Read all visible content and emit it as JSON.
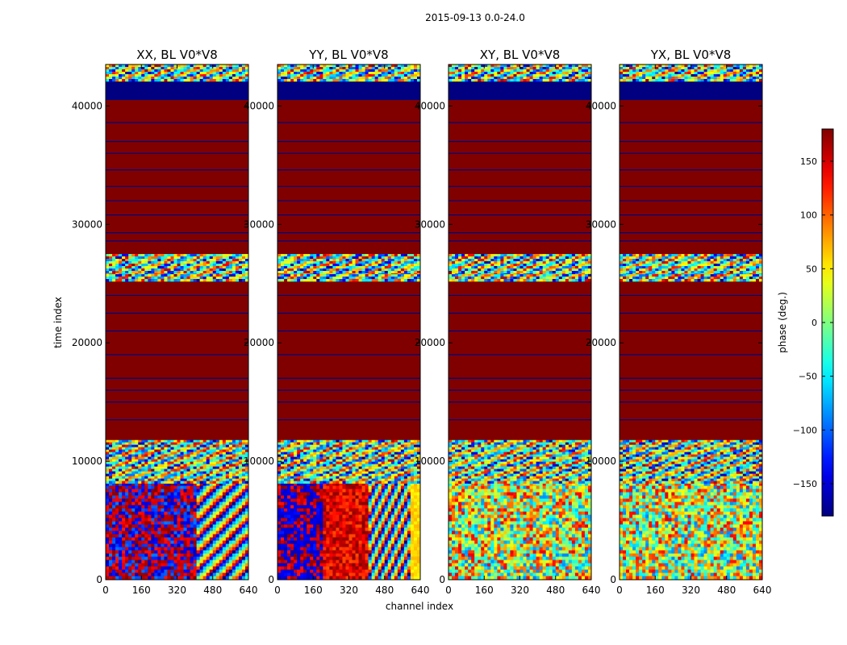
{
  "suptitle": "2015-09-13 0.0-24.0",
  "chart_data": {
    "type": "heatmap",
    "xlabel": "channel index",
    "ylabel": "time index",
    "xlim": [
      0,
      640
    ],
    "ylim": [
      0,
      43500
    ],
    "xticks": [
      0,
      160,
      320,
      480,
      640
    ],
    "yticks": [
      0,
      10000,
      20000,
      30000,
      40000
    ],
    "panels": [
      {
        "title": "XX, BL V0*V8",
        "pol": "XX"
      },
      {
        "title": "YY, BL V0*V8",
        "pol": "YY"
      },
      {
        "title": "XY, BL V0*V8",
        "pol": "XY"
      },
      {
        "title": "YX, BL V0*V8",
        "pol": "YX"
      }
    ],
    "bands": [
      {
        "from": 0,
        "to": 8200,
        "pattern": "noise"
      },
      {
        "from": 8200,
        "to": 11800,
        "pattern": "fringes"
      },
      {
        "from": 11800,
        "to": 25300,
        "pattern": "saturated"
      },
      {
        "from": 25300,
        "to": 26000,
        "pattern": "fringes"
      },
      {
        "from": 26000,
        "to": 27500,
        "pattern": "fringes"
      },
      {
        "from": 27500,
        "to": 40500,
        "pattern": "saturated"
      },
      {
        "from": 40500,
        "to": 42200,
        "pattern": "empty"
      },
      {
        "from": 42200,
        "to": 43500,
        "pattern": "fringes"
      }
    ],
    "row_lines": [
      13500,
      15000,
      16000,
      17000,
      19000,
      21000,
      22500,
      24000,
      28600,
      29300,
      30800,
      32000,
      33200,
      34600,
      36000,
      37000,
      38600
    ],
    "colorbar": {
      "label": "phase (deg.)",
      "vmin": -180,
      "vmax": 180,
      "ticks": [
        150,
        100,
        50,
        0,
        -50,
        -100,
        -150
      ],
      "tick_labels": [
        "150",
        "100",
        "50",
        "0",
        "−50",
        "−100",
        "−150"
      ],
      "colormap": "jet"
    }
  }
}
